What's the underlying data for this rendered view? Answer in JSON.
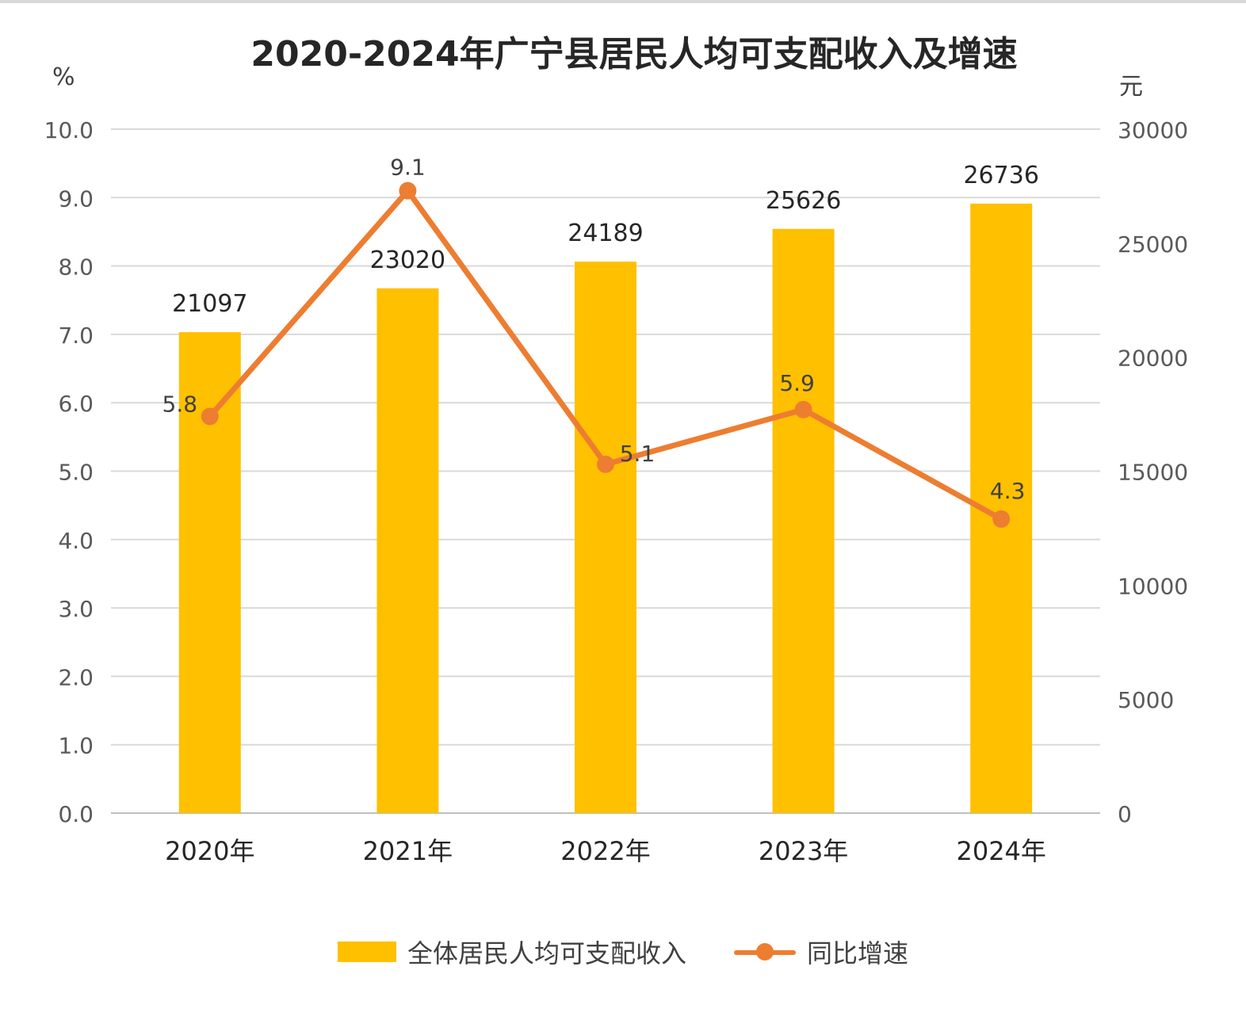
{
  "chart_data": {
    "type": "bar+line",
    "title": "2020-2024年广宁县居民人均可支配收入及增速",
    "categories": [
      "2020年",
      "2021年",
      "2022年",
      "2023年",
      "2024年"
    ],
    "y_left": {
      "unit": "%",
      "range": [
        0,
        10
      ],
      "ticks": [
        "0.0",
        "1.0",
        "2.0",
        "3.0",
        "4.0",
        "5.0",
        "6.0",
        "7.0",
        "8.0",
        "9.0",
        "10.0"
      ]
    },
    "y_right": {
      "unit": "元",
      "range": [
        0,
        30000
      ],
      "ticks": [
        "0",
        "5000",
        "10000",
        "15000",
        "20000",
        "25000",
        "30000"
      ]
    },
    "series": [
      {
        "name": "全体居民人均可支配收入",
        "type": "bar",
        "axis": "right",
        "color": "#FFC000",
        "values": [
          21097,
          23020,
          24189,
          25626,
          26736
        ]
      },
      {
        "name": "同比增速",
        "type": "line",
        "axis": "left",
        "color": "#ED7D31",
        "values": [
          5.8,
          9.1,
          5.1,
          5.9,
          4.3
        ]
      }
    ],
    "grid": true,
    "legend_position": "bottom"
  }
}
